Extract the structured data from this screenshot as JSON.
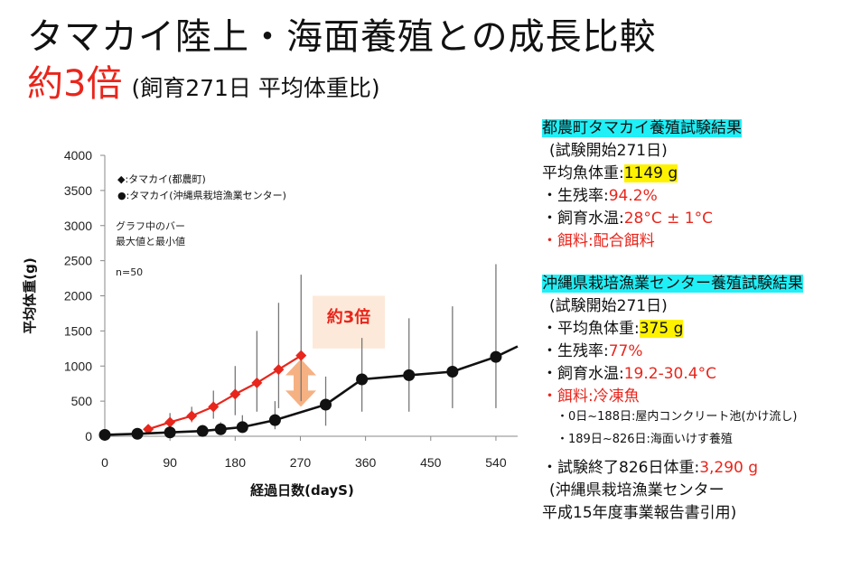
{
  "title": "タマカイ陸上・海面養殖との成長比較",
  "subtitle": {
    "main": "約3倍",
    "note": "(飼育271日 平均体重比)"
  },
  "colors": {
    "accent_red": "#e8261c",
    "highlight_cyan": "#1ff0f7",
    "highlight_yellow": "#fff200",
    "arrow": "#f6b183",
    "callout_bg": "#fde9d9"
  },
  "chart_data": {
    "type": "line",
    "xlabel": "経過日数(dayS)",
    "ylabel": "平均体重(g)",
    "xlim": [
      0,
      570
    ],
    "ylim": [
      0,
      4000
    ],
    "xticks": [
      0,
      90,
      180,
      270,
      360,
      450,
      540
    ],
    "yticks": [
      0,
      500,
      1000,
      1500,
      2000,
      2500,
      3000,
      3500,
      4000
    ],
    "legend": [
      "◆:タマカイ(都農町)",
      "●:タマカイ(沖縄県栽培漁業センター)"
    ],
    "legend_position": "top-left",
    "annotations": [
      "グラフ中のバー",
      "最大値と最小値",
      "n=50"
    ],
    "callout": "約3倍",
    "series": [
      {
        "name": "タマカイ(都農町)",
        "color": "#e8261c",
        "marker": "diamond",
        "points": [
          {
            "x": 60,
            "y": 100,
            "lo": 60,
            "hi": 150
          },
          {
            "x": 90,
            "y": 200,
            "lo": 120,
            "hi": 330
          },
          {
            "x": 120,
            "y": 290,
            "lo": 200,
            "hi": 420
          },
          {
            "x": 150,
            "y": 420,
            "lo": 250,
            "hi": 650
          },
          {
            "x": 180,
            "y": 600,
            "lo": 300,
            "hi": 1000
          },
          {
            "x": 210,
            "y": 760,
            "lo": 350,
            "hi": 1500
          },
          {
            "x": 240,
            "y": 950,
            "lo": 400,
            "hi": 1900
          },
          {
            "x": 271,
            "y": 1149,
            "lo": 500,
            "hi": 2300
          }
        ]
      },
      {
        "name": "タマカイ(沖縄県栽培漁業センター)",
        "color": "#111111",
        "marker": "circle",
        "points": [
          {
            "x": 0,
            "y": 20,
            "lo": 5,
            "hi": 40
          },
          {
            "x": 45,
            "y": 35,
            "lo": 10,
            "hi": 80
          },
          {
            "x": 90,
            "y": 55,
            "lo": 20,
            "hi": 110
          },
          {
            "x": 135,
            "y": 75,
            "lo": 30,
            "hi": 160
          },
          {
            "x": 160,
            "y": 100,
            "lo": 40,
            "hi": 200
          },
          {
            "x": 190,
            "y": 130,
            "lo": 50,
            "hi": 300
          },
          {
            "x": 235,
            "y": 230,
            "lo": 100,
            "hi": 500
          },
          {
            "x": 305,
            "y": 450,
            "lo": 150,
            "hi": 850
          },
          {
            "x": 355,
            "y": 810,
            "lo": 350,
            "hi": 1400
          },
          {
            "x": 420,
            "y": 870,
            "lo": 350,
            "hi": 1680
          },
          {
            "x": 480,
            "y": 920,
            "lo": 400,
            "hi": 1850
          },
          {
            "x": 540,
            "y": 1130,
            "lo": 400,
            "hi": 2450
          },
          {
            "x": 570,
            "y": 1280
          }
        ]
      }
    ]
  },
  "panel1": {
    "heading": "都農町タマカイ養殖試験結果",
    "start": "(試験開始271日)",
    "weight_label": "平均魚体重:",
    "weight_value": "1149 g",
    "survival_label": "・生残率:",
    "survival_value": "94.2%",
    "temp_label": "・飼育水温:",
    "temp_value": "28°C ± 1°C",
    "feed": "・餌料:配合餌料"
  },
  "panel2": {
    "heading": "沖縄県栽培漁業センター養殖試験結果",
    "start": "(試験開始271日)",
    "weight_label": "・平均魚体重:",
    "weight_value": "375 g",
    "survival_label": "・生残率:",
    "survival_value": "77%",
    "temp_label": "・飼育水温:",
    "temp_value": "19.2-30.4°C",
    "feed": "・餌料:冷凍魚",
    "note1": "・0日~188日:屋内コンクリート池(かけ流し)",
    "note2": "・189日~826日:海面いけす養殖",
    "final_label": "・試験終了826日体重:",
    "final_value": "3,290 g",
    "source1": "(沖縄県栽培漁業センター",
    "source2": "平成15年度事業報告書引用)"
  }
}
